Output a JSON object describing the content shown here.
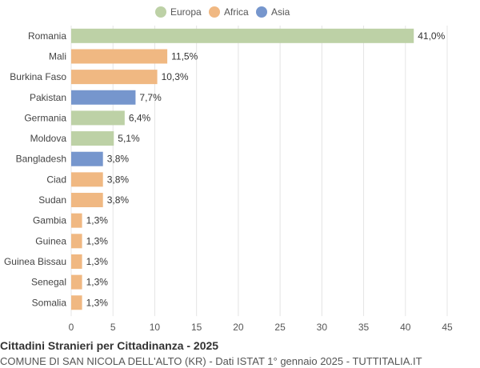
{
  "chart_data": {
    "type": "bar",
    "orientation": "horizontal",
    "title": "Cittadini Stranieri per Cittadinanza - 2025",
    "subtitle": "COMUNE DI SAN NICOLA DELL'ALTO (KR) - Dati ISTAT 1° gennaio 2025 - TUTTITALIA.IT",
    "legend": [
      {
        "name": "Europa",
        "color": "#bdd1a6"
      },
      {
        "name": "Africa",
        "color": "#f0b882"
      },
      {
        "name": "Asia",
        "color": "#7696cd"
      }
    ],
    "legend_position": "top",
    "categories": [
      "Romania",
      "Mali",
      "Burkina Faso",
      "Pakistan",
      "Germania",
      "Moldova",
      "Bangladesh",
      "Ciad",
      "Sudan",
      "Gambia",
      "Guinea",
      "Guinea Bissau",
      "Senegal",
      "Somalia"
    ],
    "values": [
      41.0,
      11.5,
      10.3,
      7.7,
      6.4,
      5.1,
      3.8,
      3.8,
      3.8,
      1.3,
      1.3,
      1.3,
      1.3,
      1.3
    ],
    "labels": [
      "41,0%",
      "11,5%",
      "10,3%",
      "7,7%",
      "6,4%",
      "5,1%",
      "3,8%",
      "3,8%",
      "3,8%",
      "1,3%",
      "1,3%",
      "1,3%",
      "1,3%",
      "1,3%"
    ],
    "groups": [
      "Europa",
      "Africa",
      "Africa",
      "Asia",
      "Europa",
      "Europa",
      "Asia",
      "Africa",
      "Africa",
      "Africa",
      "Africa",
      "Africa",
      "Africa",
      "Africa"
    ],
    "xlim": [
      0,
      45
    ],
    "xticks": [
      0,
      5,
      10,
      15,
      20,
      25,
      30,
      35,
      40,
      45
    ],
    "grid": true
  }
}
